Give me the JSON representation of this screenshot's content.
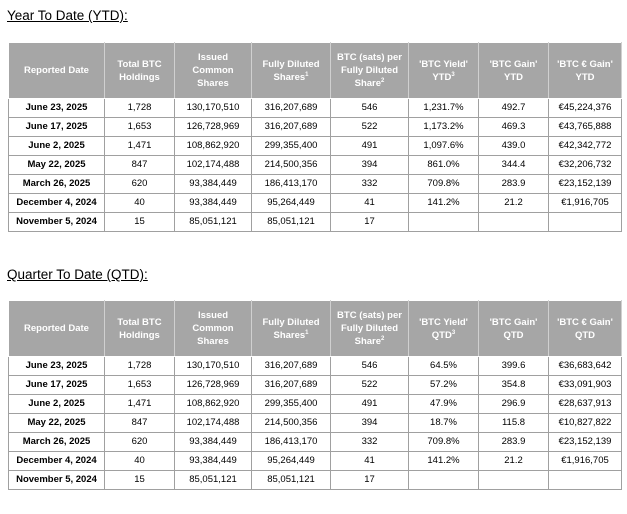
{
  "ytd": {
    "title": "Year To Date (YTD):",
    "headers": {
      "reported_date": "Reported Date",
      "total_btc": "Total BTC Holdings",
      "issued_shares": "Issued Common Shares",
      "fully_diluted": "Fully Diluted Shares",
      "fully_diluted_sup": "1",
      "sats_per_share": "BTC (sats) per Fully Diluted Share",
      "sats_per_share_sup": "2",
      "btc_yield": "'BTC Yield' YTD",
      "btc_yield_sup": "3",
      "btc_gain": "'BTC Gain' YTD",
      "btc_eur_gain": "'BTC € Gain' YTD"
    },
    "rows": [
      [
        "June 23, 2025",
        "1,728",
        "130,170,510",
        "316,207,689",
        "546",
        "1,231.7%",
        "492.7",
        "€45,224,376"
      ],
      [
        "June 17, 2025",
        "1,653",
        "126,728,969",
        "316,207,689",
        "522",
        "1,173.2%",
        "469.3",
        "€43,765,888"
      ],
      [
        "June 2, 2025",
        "1,471",
        "108,862,920",
        "299,355,400",
        "491",
        "1,097.6%",
        "439.0",
        "€42,342,772"
      ],
      [
        "May 22, 2025",
        "847",
        "102,174,488",
        "214,500,356",
        "394",
        "861.0%",
        "344.4",
        "€32,206,732"
      ],
      [
        "March 26, 2025",
        "620",
        "93,384,449",
        "186,413,170",
        "332",
        "709.8%",
        "283.9",
        "€23,152,139"
      ],
      [
        "December 4, 2024",
        "40",
        "93,384,449",
        "95,264,449",
        "41",
        "141.2%",
        "21.2",
        "€1,916,705"
      ],
      [
        "November 5, 2024",
        "15",
        "85,051,121",
        "85,051,121",
        "17",
        "",
        "",
        ""
      ]
    ]
  },
  "qtd": {
    "title": "Quarter To Date (QTD):",
    "headers": {
      "reported_date": "Reported Date",
      "total_btc": "Total BTC Holdings",
      "issued_shares": "Issued Common Shares",
      "fully_diluted": "Fully Diluted Shares",
      "fully_diluted_sup": "1",
      "sats_per_share": "BTC (sats) per Fully Diluted Share",
      "sats_per_share_sup": "2",
      "btc_yield": "'BTC Yield' QTD",
      "btc_yield_sup": "3",
      "btc_gain": "'BTC Gain' QTD",
      "btc_eur_gain": "'BTC € Gain' QTD"
    },
    "rows": [
      [
        "June 23, 2025",
        "1,728",
        "130,170,510",
        "316,207,689",
        "546",
        "64.5%",
        "399.6",
        "€36,683,642"
      ],
      [
        "June 17, 2025",
        "1,653",
        "126,728,969",
        "316,207,689",
        "522",
        "57.2%",
        "354.8",
        "€33,091,903"
      ],
      [
        "June 2, 2025",
        "1,471",
        "108,862,920",
        "299,355,400",
        "491",
        "47.9%",
        "296.9",
        "€28,637,913"
      ],
      [
        "May 22, 2025",
        "847",
        "102,174,488",
        "214,500,356",
        "394",
        "18.7%",
        "115.8",
        "€10,827,822"
      ],
      [
        "March 26, 2025",
        "620",
        "93,384,449",
        "186,413,170",
        "332",
        "709.8%",
        "283.9",
        "€23,152,139"
      ],
      [
        "December 4, 2024",
        "40",
        "93,384,449",
        "95,264,449",
        "41",
        "141.2%",
        "21.2",
        "€1,916,705"
      ],
      [
        "November 5, 2024",
        "15",
        "85,051,121",
        "85,051,121",
        "17",
        "",
        "",
        ""
      ]
    ]
  },
  "colors": {
    "header_bg": "#a6a6a6",
    "header_text": "#ffffff",
    "border": "#a0a0a0"
  }
}
